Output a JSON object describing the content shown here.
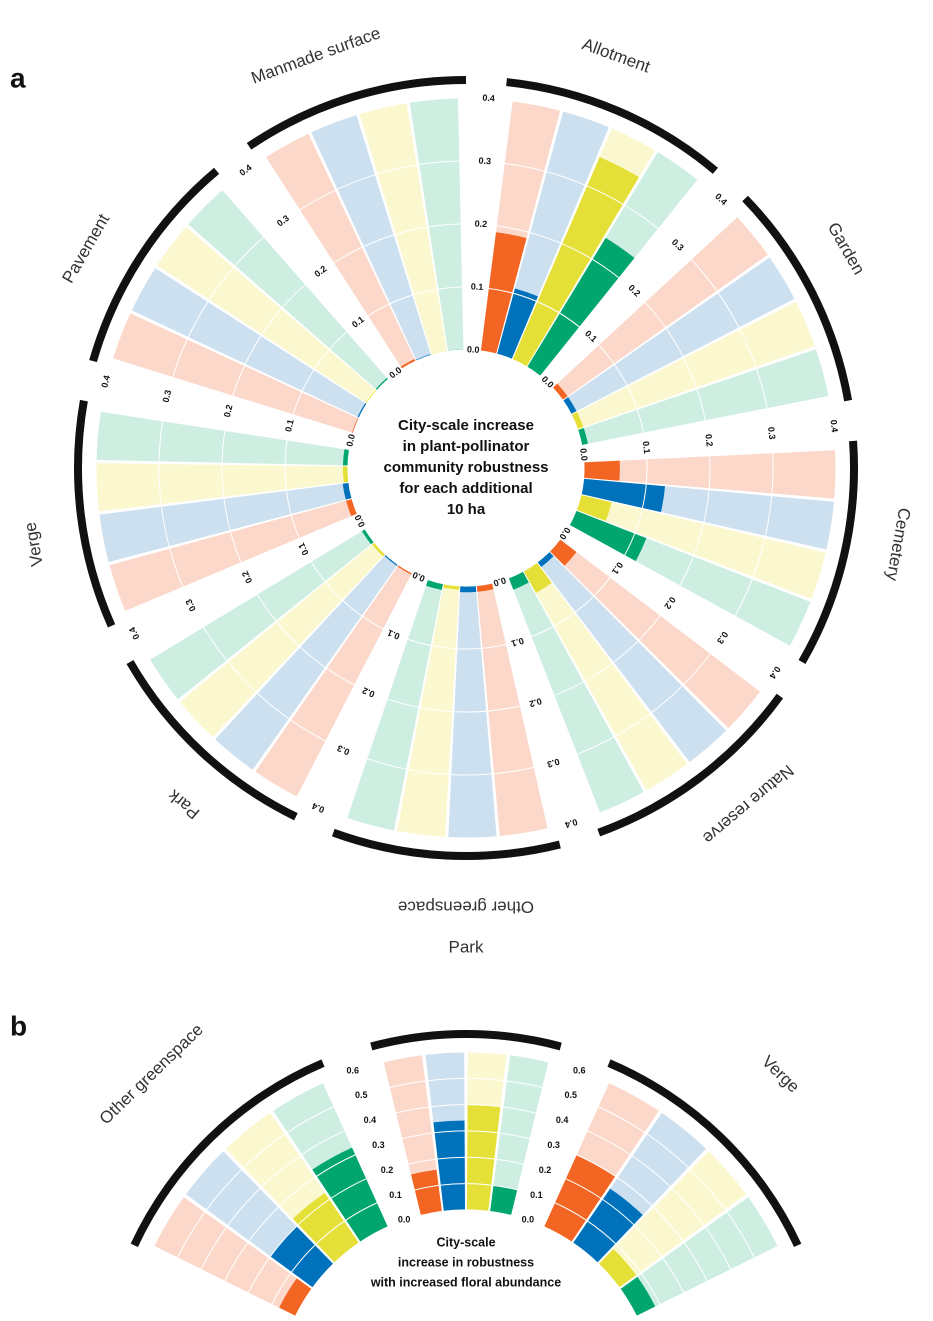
{
  "chart_data": [
    {
      "type": "radial_bar",
      "panel_label": "a",
      "center_text": [
        "City-scale increase",
        "in plant-pollinator",
        "community robustness",
        "for each additional",
        "10 ha"
      ],
      "categories": [
        "Allotment",
        "Garden",
        "Cemetery",
        "Nature reserve",
        "Other greenspace",
        "Park",
        "Verge",
        "Pavement",
        "Manmade surface"
      ],
      "ylim": [
        0,
        0.4
      ],
      "yticks": [
        {
          "value": 0,
          "label": "0.0"
        },
        0.1,
        0.2,
        0.3,
        0.4
      ],
      "series": [
        {
          "color": "#f26522",
          "values": [
            0.19,
            0.01,
            0.057,
            0.033,
            0.01,
            0.003,
            0.01,
            0.002,
            0.004
          ]
        },
        {
          "color": "#0072bc",
          "values": [
            0.108,
            0.01,
            0.13,
            0.01,
            0.01,
            0.003,
            0.01,
            0.003,
            0.002
          ]
        },
        {
          "color": "#e5e038",
          "values": [
            0.35,
            0.01,
            0.05,
            0.04,
            0.006,
            0.005,
            0.008,
            0.002,
            0.001
          ]
        },
        {
          "color": "#00a66e",
          "values": [
            0.24,
            0.01,
            0.12,
            0.02,
            0.01,
            0.006,
            0.008,
            0.003,
            0.001
          ]
        }
      ]
    },
    {
      "type": "radial_bar",
      "panel_label": "b",
      "center_text": [
        "City-scale",
        "increase in robustness",
        "with increased floral abundance"
      ],
      "categories": [
        "Other greenspace",
        "Park",
        "Verge"
      ],
      "ylim": [
        0,
        0.6
      ],
      "yticks": [
        {
          "value": 0,
          "label": "0.0"
        },
        0.1,
        0.2,
        0.3,
        0.4,
        0.5,
        0.6
      ],
      "series": [
        {
          "color": "#f26522",
          "values": [
            0.07,
            0.16,
            0.3
          ]
        },
        {
          "color": "#0072bc",
          "values": [
            0.2,
            0.34,
            0.25
          ]
        },
        {
          "color": "#e5e038",
          "values": [
            0.23,
            0.4,
            0.08
          ]
        },
        {
          "color": "#00a66e",
          "values": [
            0.33,
            0.1,
            0.08
          ]
        }
      ]
    }
  ]
}
